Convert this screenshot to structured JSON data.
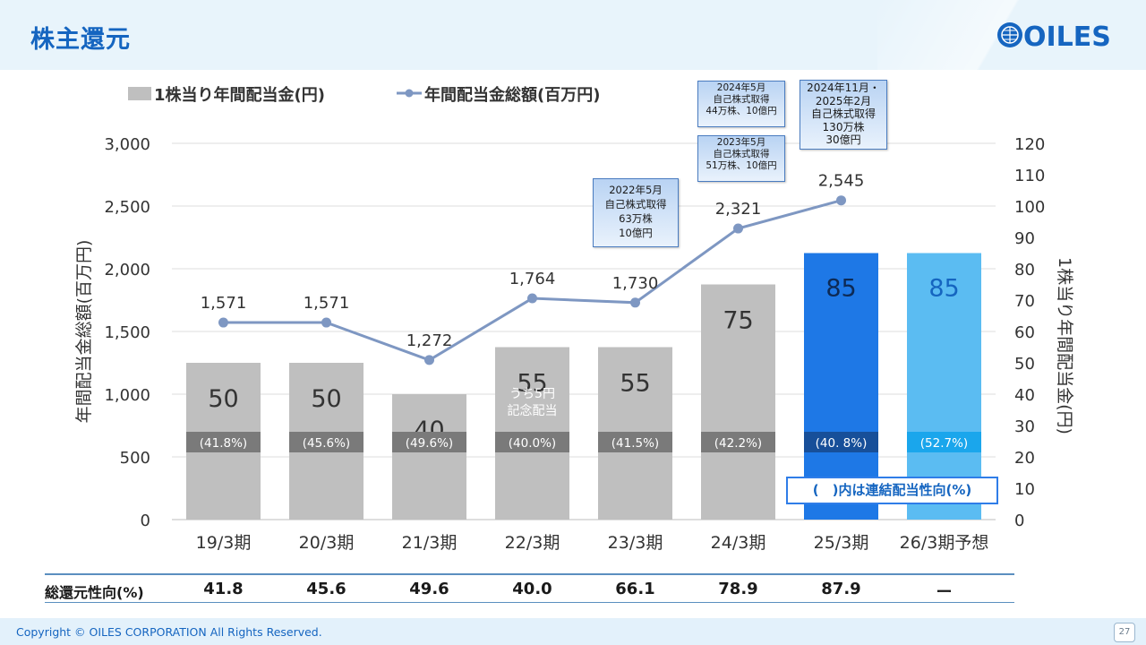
{
  "header": {
    "title": "株主還元",
    "logo_text": "OILES"
  },
  "footer": {
    "copyright": "Copyright © OILES CORPORATION All Rights Reserved.",
    "page_number": "27"
  },
  "colors": {
    "bar_gray": "#bfbfbf",
    "bar_actual": "#1e78e6",
    "bar_forecast": "#5bbcf2",
    "line": "#7e97c2",
    "band_gray": "#7a7a7a",
    "band_actual": "#174f99",
    "band_forecast": "#1aa6ec",
    "title_blue": "#1565c0"
  },
  "chart_data": {
    "type": "bar",
    "categories": [
      "19/3期",
      "20/3期",
      "21/3期",
      "22/3期",
      "23/3期",
      "24/3期",
      "25/3期",
      "26/3期予想"
    ],
    "series": [
      {
        "name": "1株当り年間配当金(円)",
        "type": "bar",
        "axis": "right",
        "values": [
          50,
          50,
          40,
          55,
          55,
          75,
          85,
          85
        ]
      },
      {
        "name": "年間配当金総額(百万円)",
        "type": "line",
        "axis": "left",
        "values": [
          1571,
          1571,
          1272,
          1764,
          1730,
          2321,
          2545,
          null
        ],
        "labels": [
          "1,571",
          "1,571",
          "1,272",
          "1,764",
          "1,730",
          "2,321",
          "2,545",
          ""
        ]
      }
    ],
    "payout_ratio_labels": [
      "(41.8%)",
      "(45.6%)",
      "(49.6%)",
      "(40.0%)",
      "(41.5%)",
      "(42.2%)",
      "(40. 8%)",
      "(52.7%)"
    ],
    "commemorative_note": "うち5円\n記念配当",
    "left_axis": {
      "label": "年間配当金総額(百万円)",
      "ylim": [
        0,
        3000
      ],
      "ticks": [
        "0",
        "500",
        "1,000",
        "1,500",
        "2,000",
        "2,500",
        "3,000"
      ]
    },
    "right_axis": {
      "label": "1株当り年間配当金(円)",
      "ylim": [
        0,
        120
      ],
      "ticks": [
        "0",
        "10",
        "20",
        "30",
        "40",
        "50",
        "60",
        "70",
        "80",
        "90",
        "100",
        "110",
        "120"
      ]
    },
    "legend": {
      "position": "top-left"
    },
    "grid": true
  },
  "callouts": [
    "2022年5月\n自己株式取得\n63万株\n10億円",
    "2023年5月\n自己株式取得\n51万株、10億円",
    "2024年5月\n自己株式取得\n44万株、10億円",
    "2024年11月・\n2025年2月\n自己株式取得\n130万株\n30億円"
  ],
  "ratio_note": "(　)内は連結配当性向(%)",
  "total_return": {
    "label": "総還元性向(%)",
    "values": [
      "41.8",
      "45.6",
      "49.6",
      "40.0",
      "66.1",
      "78.9",
      "87.9",
      "ー"
    ]
  }
}
